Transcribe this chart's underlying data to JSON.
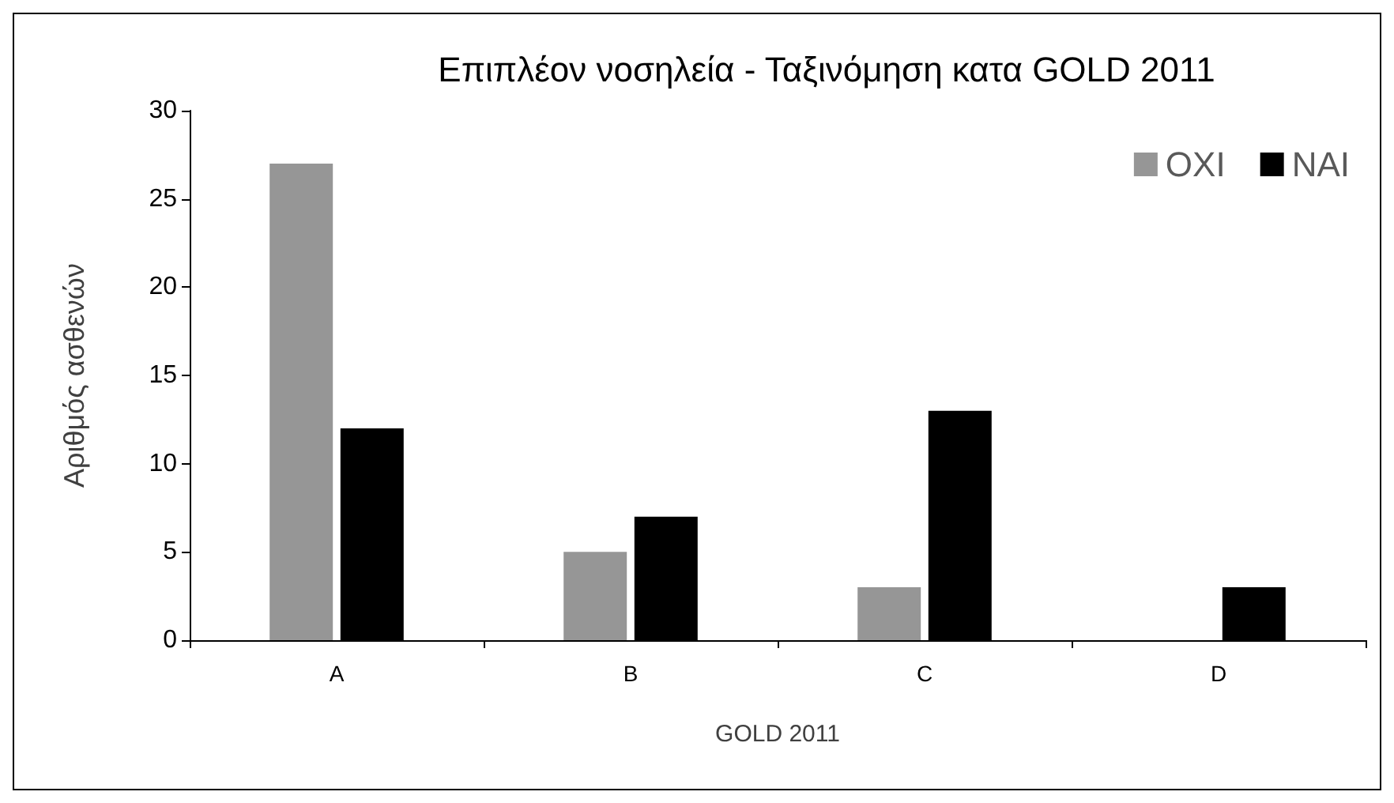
{
  "chart_data": {
    "type": "bar",
    "title": "Επιπλέον νοσηλεία - Ταξινόμηση κατα GOLD 2011",
    "xlabel": "GOLD 2011",
    "ylabel": "Αριθμός ασθενών",
    "categories": [
      "A",
      "B",
      "C",
      "D"
    ],
    "series": [
      {
        "name": "ΟΧΙ",
        "color": "#969696",
        "values": [
          27,
          5,
          3,
          0
        ]
      },
      {
        "name": "ΝΑΙ",
        "color": "#000000",
        "values": [
          12,
          7,
          13,
          3
        ]
      }
    ],
    "ylim": [
      0,
      30
    ],
    "yticks": [
      0,
      5,
      10,
      15,
      20,
      25,
      30
    ],
    "grid": false,
    "legend": "top right"
  }
}
